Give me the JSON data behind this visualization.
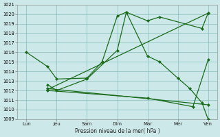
{
  "bg_color": "#cce8e8",
  "grid_color": "#88bbbb",
  "line_color": "#1a6b1a",
  "xlabel": "Pression niveau de la mer( hPa )",
  "ylim": [
    1009,
    1021
  ],
  "yticks": [
    1009,
    1010,
    1011,
    1012,
    1013,
    1014,
    1015,
    1016,
    1017,
    1018,
    1019,
    1020,
    1021
  ],
  "xtick_labels": [
    "Lun",
    "Jeu",
    "Sam",
    "Dim",
    "Mar",
    "Mer",
    "Ven"
  ],
  "xtick_positions": [
    0,
    1,
    2,
    3,
    4,
    5,
    6
  ],
  "series": [
    {
      "x": [
        0,
        0.7,
        1.0,
        2.0,
        2.5,
        3.0,
        3.3,
        4.0,
        4.4,
        5.8,
        6.0
      ],
      "y": [
        1016,
        1014.5,
        1013.2,
        1013.3,
        1015.0,
        1019.8,
        1020.2,
        1019.3,
        1019.7,
        1018.5,
        1020.1
      ]
    },
    {
      "x": [
        0.7,
        1.0,
        2.0,
        3.0,
        3.3,
        4.0,
        4.4,
        5.0,
        5.4,
        5.8,
        6.0
      ],
      "y": [
        1012.6,
        1012.0,
        1013.2,
        1016.2,
        1020.2,
        1015.6,
        1015.0,
        1013.3,
        1012.2,
        1010.7,
        1009.0
      ]
    },
    {
      "x": [
        0.7,
        6.0
      ],
      "y": [
        1012.1,
        1020.1
      ]
    },
    {
      "x": [
        0.7,
        4.0,
        5.5,
        6.0
      ],
      "y": [
        1012.0,
        1011.2,
        1010.3,
        1015.2
      ]
    },
    {
      "x": [
        0.7,
        6.0
      ],
      "y": [
        1012.2,
        1010.5
      ]
    }
  ]
}
